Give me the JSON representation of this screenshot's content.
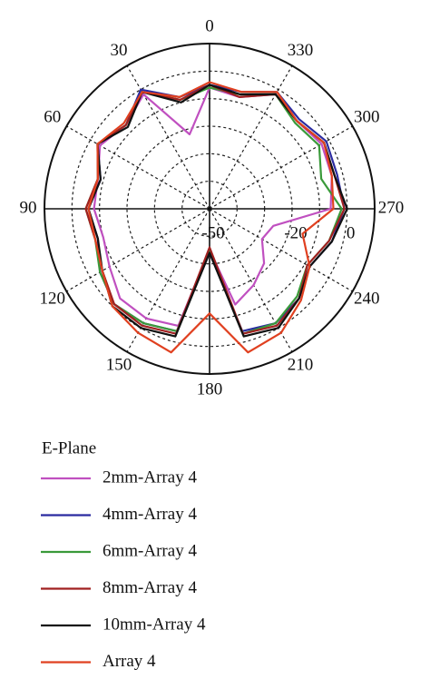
{
  "chart_data": {
    "type": "polar",
    "theta": [
      0,
      15,
      30,
      45,
      60,
      75,
      90,
      105,
      120,
      135,
      150,
      165,
      180,
      195,
      210,
      225,
      240,
      255,
      270,
      285,
      300,
      315,
      330,
      345
    ],
    "thetaticks": [
      0,
      30,
      60,
      90,
      120,
      150,
      180,
      210,
      240,
      270,
      300,
      330
    ],
    "direction": "counterclockwise",
    "zero_location": "top",
    "rlim": [
      -50,
      10
    ],
    "rticks": [
      -50,
      -20,
      0
    ],
    "minor_rticks": [
      -40,
      -30,
      -10
    ],
    "legend_title": "E-Plane",
    "series": [
      {
        "name": "2mm-Array 4",
        "color": "#c050c0",
        "values": [
          -6,
          -22,
          -2,
          -7,
          -4,
          -8,
          -8,
          -10,
          -8,
          -4,
          -4,
          -6,
          -35,
          -14,
          -18,
          -22,
          -28,
          -26,
          -6,
          -4,
          -3,
          -5,
          -2,
          -8
        ]
      },
      {
        "name": "4mm-Array 4",
        "color": "#2a2aa0",
        "values": [
          -5,
          -8,
          0,
          -7,
          -3,
          -9,
          -6,
          -8,
          -4,
          -1,
          -2,
          -4,
          -34,
          -4,
          -2,
          -4,
          -8,
          -4,
          -1,
          -2,
          -1,
          -4,
          -1,
          -6
        ]
      },
      {
        "name": "6mm-Array 4",
        "color": "#3a9a3a",
        "values": [
          -6,
          -9,
          -1,
          -7,
          -3,
          -8,
          -5,
          -7,
          -4,
          -1,
          -2,
          -4,
          -35,
          -3,
          -2,
          -5,
          -9,
          -5,
          -2,
          -8,
          -4,
          -6,
          -2,
          -7
        ]
      },
      {
        "name": "8mm-Array 4",
        "color": "#a02020",
        "values": [
          -5,
          -9,
          -1,
          -7,
          -3,
          -8,
          -5,
          -7,
          -5,
          -1,
          -1,
          -3,
          -36,
          -3,
          -1,
          -4,
          -9,
          -5,
          -1,
          -3,
          -2,
          -5,
          -2,
          -8
        ]
      },
      {
        "name": "10mm-Array 4",
        "color": "#111111",
        "values": [
          -5,
          -10,
          -1,
          -8,
          -3,
          -9,
          -6,
          -8,
          -5,
          0,
          0,
          -2,
          -34,
          -2,
          0,
          -4,
          -8,
          -4,
          0,
          -3,
          -2,
          -5,
          -2,
          -7
        ]
      },
      {
        "name": "Array 4",
        "color": "#e04020",
        "values": [
          -4,
          -8,
          -1,
          -6,
          -3,
          -8,
          -6,
          -7,
          -5,
          0,
          2,
          4,
          -12,
          4,
          2,
          -3,
          -8,
          -15,
          -5,
          -4,
          -2,
          -5,
          -1,
          -6
        ]
      }
    ]
  }
}
